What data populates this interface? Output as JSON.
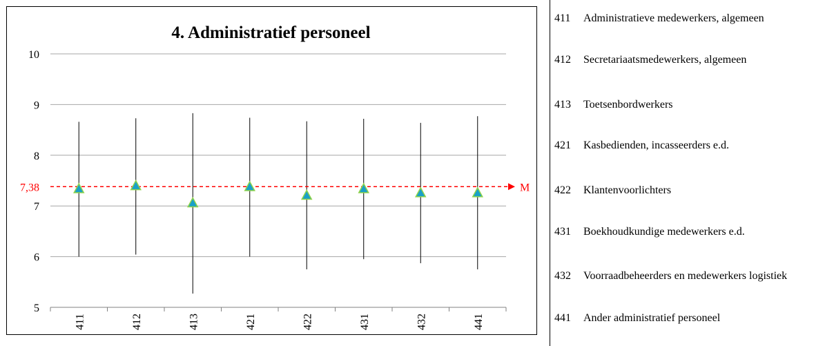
{
  "chart_data": {
    "type": "scatter",
    "title": "4. Administratief  personeel",
    "xlabel": "",
    "ylabel": "",
    "ylim": [
      5,
      10
    ],
    "yticks": [
      "5",
      "6",
      "7",
      "8",
      "9",
      "10"
    ],
    "grid": true,
    "categories": [
      "411",
      "412",
      "413",
      "421",
      "422",
      "431",
      "432",
      "441"
    ],
    "series": [
      {
        "mean": [
          7.33,
          7.39,
          7.05,
          7.37,
          7.2,
          7.33,
          7.25,
          7.25
        ],
        "high": [
          8.66,
          8.73,
          8.83,
          8.74,
          8.67,
          8.72,
          8.64,
          8.77
        ],
        "low": [
          6.0,
          6.04,
          5.27,
          6.0,
          5.75,
          5.95,
          5.87,
          5.75
        ]
      }
    ],
    "reference_line": {
      "value": 7.38,
      "label": "7,38",
      "end_label": "M",
      "color": "#ff0000"
    },
    "marker_color": "#1aa0c8",
    "marker_edge_color": "#8fd34a"
  },
  "legend": [
    {
      "code": "411",
      "label": "Administratieve medewerkers, algemeen"
    },
    {
      "code": "412",
      "label": "Secretariaatsmedewerkers, algemeen"
    },
    {
      "code": "413",
      "label": "Toetsenbordwerkers"
    },
    {
      "code": "421",
      "label": "Kasbedienden, incasseerders e.d."
    },
    {
      "code": "422",
      "label": "Klantenvoorlichters"
    },
    {
      "code": "431",
      "label": "Boekhoudkundige medewerkers e.d."
    },
    {
      "code": "432",
      "label": "Voorraadbeheerders en medewerkers logistiek"
    },
    {
      "code": "441",
      "label": "Ander administratief personeel"
    }
  ]
}
